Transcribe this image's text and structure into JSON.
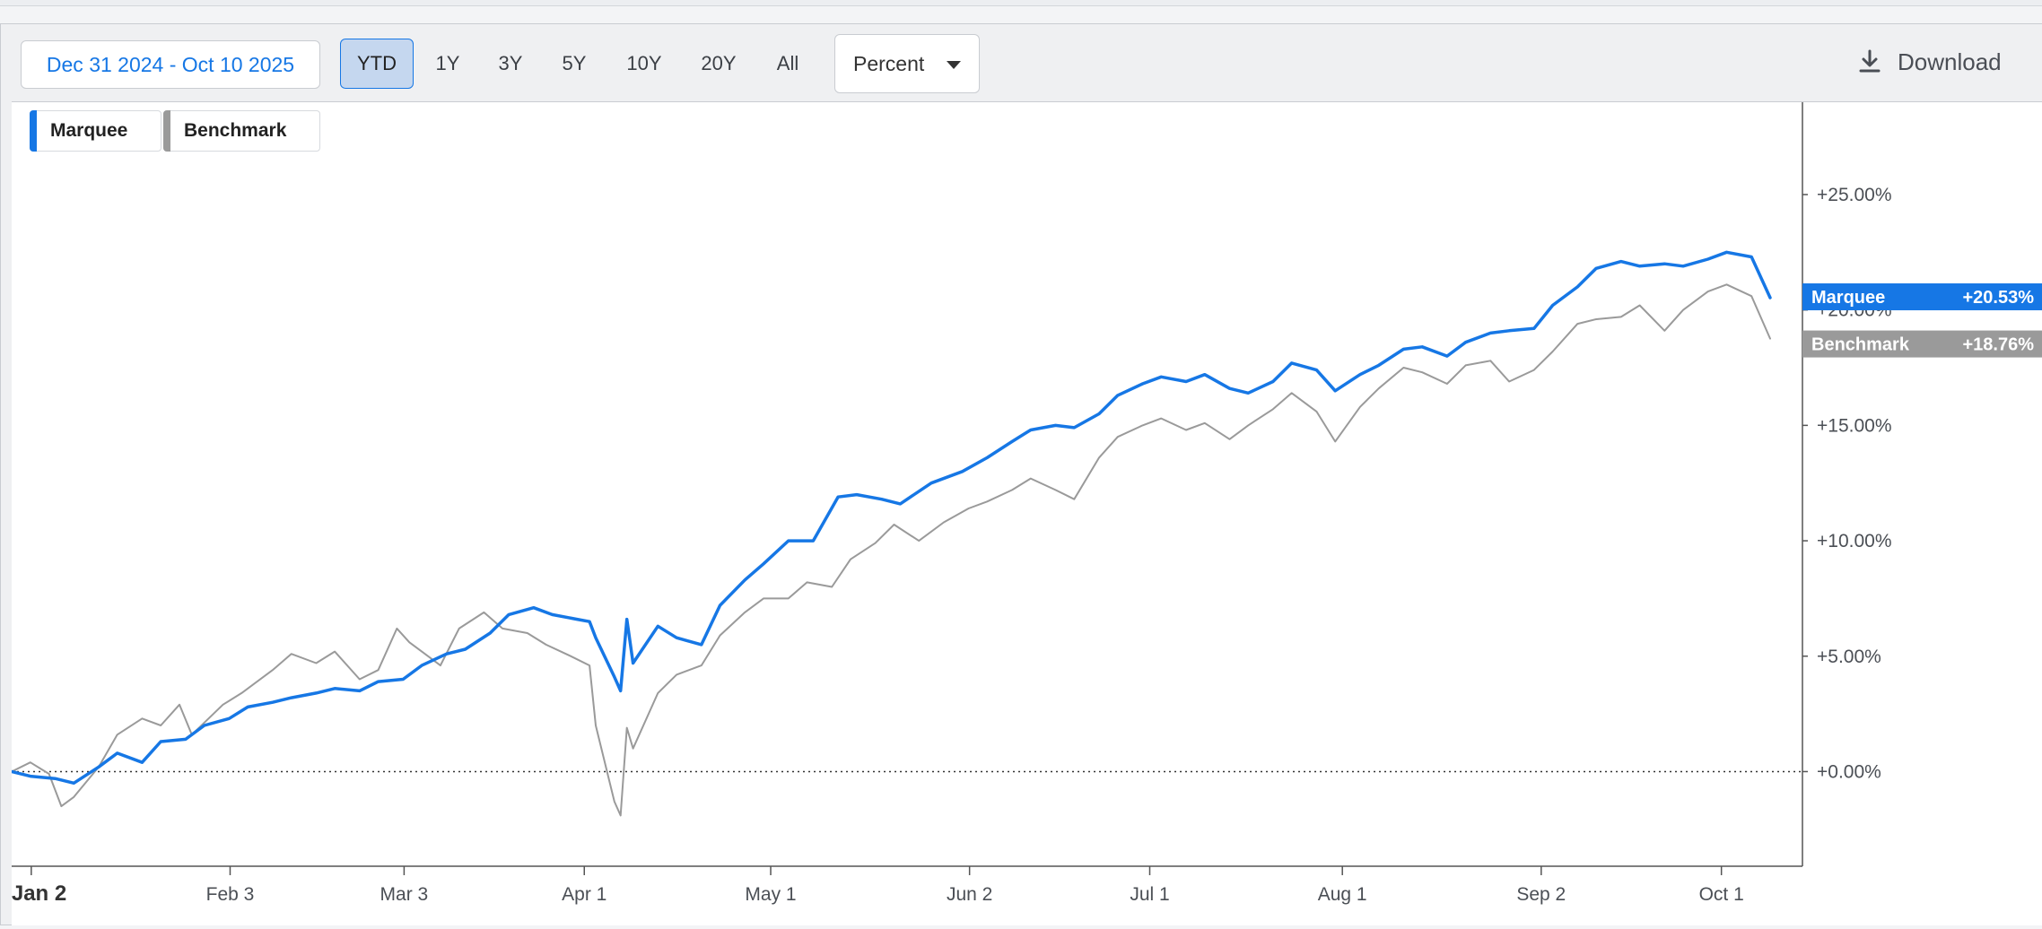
{
  "toolbar": {
    "date_range": "Dec 31 2024 - Oct 10 2025",
    "ranges": [
      "YTD",
      "1Y",
      "3Y",
      "5Y",
      "10Y",
      "20Y",
      "All"
    ],
    "active_range": "YTD",
    "mode": "Percent",
    "download_label": "Download"
  },
  "colors": {
    "marquee": "#1677e5",
    "benchmark": "#9a9a9a"
  },
  "chart_data": {
    "type": "line",
    "title": "",
    "xlabel": "",
    "ylabel": "",
    "x_tick_labels": [
      "Jan 2",
      "Feb 3",
      "Mar 3",
      "Apr 1",
      "May 1",
      "Jun 2",
      "Jul 1",
      "Aug 1",
      "Sep 2",
      "Oct 1"
    ],
    "y_tick_labels": [
      "+0.00%",
      "+5.00%",
      "+10.00%",
      "+15.00%",
      "+20.00%",
      "+25.00%"
    ],
    "y_ticks": [
      0,
      5,
      10,
      15,
      20,
      25
    ],
    "ylim": [
      -4.1,
      29
    ],
    "xlim": [
      "2024-12-31",
      "2025-10-10"
    ],
    "zero_line": "dotted",
    "legend_position": "top-left",
    "series": [
      {
        "name": "Marquee",
        "last_label": "+20.53%",
        "points": [
          [
            "2024-12-31",
            0
          ],
          [
            "2025-01-03",
            -0.2
          ],
          [
            "2025-01-07",
            -0.3
          ],
          [
            "2025-01-10",
            -0.5
          ],
          [
            "2025-01-14",
            0.2
          ],
          [
            "2025-01-17",
            0.8
          ],
          [
            "2025-01-21",
            0.4
          ],
          [
            "2025-01-24",
            1.3
          ],
          [
            "2025-01-28",
            1.4
          ],
          [
            "2025-01-31",
            2.0
          ],
          [
            "2025-02-04",
            2.3
          ],
          [
            "2025-02-07",
            2.8
          ],
          [
            "2025-02-11",
            3.0
          ],
          [
            "2025-02-14",
            3.2
          ],
          [
            "2025-02-18",
            3.4
          ],
          [
            "2025-02-21",
            3.6
          ],
          [
            "2025-02-25",
            3.5
          ],
          [
            "2025-02-28",
            3.9
          ],
          [
            "2025-03-04",
            4.0
          ],
          [
            "2025-03-07",
            4.6
          ],
          [
            "2025-03-11",
            5.1
          ],
          [
            "2025-03-14",
            5.3
          ],
          [
            "2025-03-18",
            6.0
          ],
          [
            "2025-03-21",
            6.8
          ],
          [
            "2025-03-25",
            7.1
          ],
          [
            "2025-03-28",
            6.8
          ],
          [
            "2025-04-01",
            6.6
          ],
          [
            "2025-04-03",
            6.5
          ],
          [
            "2025-04-04",
            5.8
          ],
          [
            "2025-04-07",
            4.1
          ],
          [
            "2025-04-08",
            3.5
          ],
          [
            "2025-04-09",
            6.6
          ],
          [
            "2025-04-10",
            4.7
          ],
          [
            "2025-04-14",
            6.3
          ],
          [
            "2025-04-17",
            5.8
          ],
          [
            "2025-04-21",
            5.5
          ],
          [
            "2025-04-24",
            7.2
          ],
          [
            "2025-04-28",
            8.3
          ],
          [
            "2025-05-01",
            9.0
          ],
          [
            "2025-05-05",
            10.0
          ],
          [
            "2025-05-09",
            10.0
          ],
          [
            "2025-05-13",
            11.9
          ],
          [
            "2025-05-16",
            12.0
          ],
          [
            "2025-05-20",
            11.8
          ],
          [
            "2025-05-23",
            11.6
          ],
          [
            "2025-05-28",
            12.5
          ],
          [
            "2025-06-02",
            13.0
          ],
          [
            "2025-06-06",
            13.6
          ],
          [
            "2025-06-10",
            14.3
          ],
          [
            "2025-06-13",
            14.8
          ],
          [
            "2025-06-17",
            15.0
          ],
          [
            "2025-06-20",
            14.9
          ],
          [
            "2025-06-24",
            15.5
          ],
          [
            "2025-06-27",
            16.3
          ],
          [
            "2025-07-01",
            16.8
          ],
          [
            "2025-07-04",
            17.1
          ],
          [
            "2025-07-08",
            16.9
          ],
          [
            "2025-07-11",
            17.2
          ],
          [
            "2025-07-15",
            16.6
          ],
          [
            "2025-07-18",
            16.4
          ],
          [
            "2025-07-22",
            16.9
          ],
          [
            "2025-07-25",
            17.7
          ],
          [
            "2025-07-29",
            17.4
          ],
          [
            "2025-08-01",
            16.5
          ],
          [
            "2025-08-05",
            17.2
          ],
          [
            "2025-08-08",
            17.6
          ],
          [
            "2025-08-12",
            18.3
          ],
          [
            "2025-08-15",
            18.4
          ],
          [
            "2025-08-19",
            18.0
          ],
          [
            "2025-08-22",
            18.6
          ],
          [
            "2025-08-26",
            19.0
          ],
          [
            "2025-08-29",
            19.1
          ],
          [
            "2025-09-02",
            19.2
          ],
          [
            "2025-09-05",
            20.2
          ],
          [
            "2025-09-09",
            21.0
          ],
          [
            "2025-09-12",
            21.8
          ],
          [
            "2025-09-16",
            22.1
          ],
          [
            "2025-09-19",
            21.9
          ],
          [
            "2025-09-23",
            22.0
          ],
          [
            "2025-09-26",
            21.9
          ],
          [
            "2025-09-30",
            22.2
          ],
          [
            "2025-10-03",
            22.5
          ],
          [
            "2025-10-07",
            22.3
          ],
          [
            "2025-10-10",
            20.53
          ]
        ]
      },
      {
        "name": "Benchmark",
        "last_label": "+18.76%",
        "points": [
          [
            "2024-12-31",
            0
          ],
          [
            "2025-01-03",
            0.4
          ],
          [
            "2025-01-06",
            -0.1
          ],
          [
            "2025-01-08",
            -1.5
          ],
          [
            "2025-01-10",
            -1.1
          ],
          [
            "2025-01-14",
            0.2
          ],
          [
            "2025-01-17",
            1.6
          ],
          [
            "2025-01-21",
            2.3
          ],
          [
            "2025-01-24",
            2.0
          ],
          [
            "2025-01-27",
            2.9
          ],
          [
            "2025-01-29",
            1.6
          ],
          [
            "2025-02-03",
            2.9
          ],
          [
            "2025-02-06",
            3.4
          ],
          [
            "2025-02-11",
            4.4
          ],
          [
            "2025-02-14",
            5.1
          ],
          [
            "2025-02-18",
            4.7
          ],
          [
            "2025-02-21",
            5.2
          ],
          [
            "2025-02-25",
            4.0
          ],
          [
            "2025-02-28",
            4.4
          ],
          [
            "2025-03-03",
            6.2
          ],
          [
            "2025-03-05",
            5.6
          ],
          [
            "2025-03-07",
            5.2
          ],
          [
            "2025-03-10",
            4.6
          ],
          [
            "2025-03-13",
            6.2
          ],
          [
            "2025-03-17",
            6.9
          ],
          [
            "2025-03-20",
            6.2
          ],
          [
            "2025-03-24",
            6.0
          ],
          [
            "2025-03-27",
            5.5
          ],
          [
            "2025-03-31",
            5.0
          ],
          [
            "2025-04-03",
            4.6
          ],
          [
            "2025-04-04",
            2.0
          ],
          [
            "2025-04-07",
            -1.3
          ],
          [
            "2025-04-08",
            -1.9
          ],
          [
            "2025-04-09",
            1.9
          ],
          [
            "2025-04-10",
            1.0
          ],
          [
            "2025-04-14",
            3.4
          ],
          [
            "2025-04-17",
            4.2
          ],
          [
            "2025-04-21",
            4.6
          ],
          [
            "2025-04-24",
            5.9
          ],
          [
            "2025-04-28",
            6.9
          ],
          [
            "2025-05-01",
            7.5
          ],
          [
            "2025-05-05",
            7.5
          ],
          [
            "2025-05-08",
            8.2
          ],
          [
            "2025-05-12",
            8.0
          ],
          [
            "2025-05-15",
            9.2
          ],
          [
            "2025-05-19",
            9.9
          ],
          [
            "2025-05-22",
            10.7
          ],
          [
            "2025-05-26",
            10.0
          ],
          [
            "2025-05-30",
            10.8
          ],
          [
            "2025-06-03",
            11.4
          ],
          [
            "2025-06-06",
            11.7
          ],
          [
            "2025-06-10",
            12.2
          ],
          [
            "2025-06-13",
            12.7
          ],
          [
            "2025-06-17",
            12.2
          ],
          [
            "2025-06-20",
            11.8
          ],
          [
            "2025-06-24",
            13.6
          ],
          [
            "2025-06-27",
            14.5
          ],
          [
            "2025-07-01",
            15.0
          ],
          [
            "2025-07-04",
            15.3
          ],
          [
            "2025-07-08",
            14.8
          ],
          [
            "2025-07-11",
            15.1
          ],
          [
            "2025-07-15",
            14.4
          ],
          [
            "2025-07-18",
            15.0
          ],
          [
            "2025-07-22",
            15.7
          ],
          [
            "2025-07-25",
            16.4
          ],
          [
            "2025-07-29",
            15.6
          ],
          [
            "2025-08-01",
            14.3
          ],
          [
            "2025-08-05",
            15.8
          ],
          [
            "2025-08-08",
            16.6
          ],
          [
            "2025-08-12",
            17.5
          ],
          [
            "2025-08-15",
            17.3
          ],
          [
            "2025-08-19",
            16.8
          ],
          [
            "2025-08-22",
            17.6
          ],
          [
            "2025-08-26",
            17.8
          ],
          [
            "2025-08-29",
            16.9
          ],
          [
            "2025-09-02",
            17.4
          ],
          [
            "2025-09-05",
            18.2
          ],
          [
            "2025-09-09",
            19.4
          ],
          [
            "2025-09-12",
            19.6
          ],
          [
            "2025-09-16",
            19.7
          ],
          [
            "2025-09-19",
            20.2
          ],
          [
            "2025-09-23",
            19.1
          ],
          [
            "2025-09-26",
            20.0
          ],
          [
            "2025-09-30",
            20.8
          ],
          [
            "2025-10-03",
            21.1
          ],
          [
            "2025-10-07",
            20.6
          ],
          [
            "2025-10-10",
            18.76
          ]
        ]
      }
    ]
  }
}
